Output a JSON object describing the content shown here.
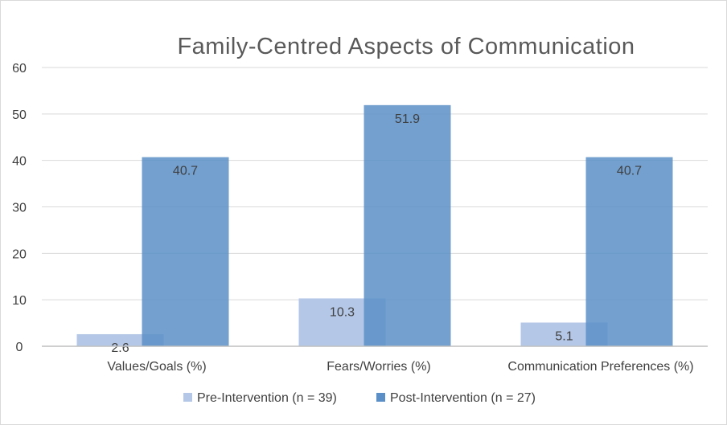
{
  "chart_data": {
    "type": "bar",
    "title": "Family-Centred Aspects of Communication",
    "categories": [
      "Values/Goals (%)",
      "Fears/Worries (%)",
      "Communication Preferences (%)"
    ],
    "series": [
      {
        "name": "Pre-Intervention (n = 39)",
        "values": [
          2.6,
          10.3,
          5.1
        ],
        "color": "#b4c7e7"
      },
      {
        "name": "Post-Intervention (n = 27)",
        "values": [
          40.7,
          51.9,
          40.7
        ],
        "color": "#5b8fc7"
      }
    ],
    "ylim": [
      0,
      60
    ],
    "yticks": [
      0,
      10,
      20,
      30,
      40,
      50,
      60
    ],
    "grid": true,
    "legend": "bottom"
  }
}
